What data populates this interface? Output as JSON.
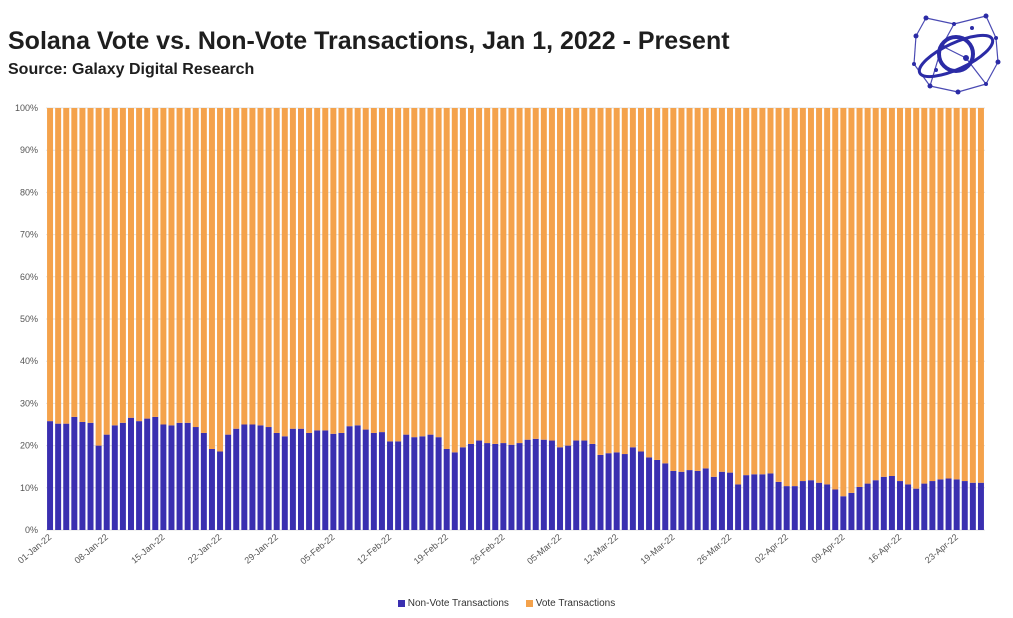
{
  "header": {
    "title": "Solana Vote vs. Non-Vote Transactions, Jan 1, 2022 - Present",
    "subtitle": "Source: Galaxy Digital Research"
  },
  "logo": {
    "icon": "galaxy-network-logo-icon",
    "color": "#2b2ba6"
  },
  "colors": {
    "non_vote": "#3a2fb0",
    "vote": "#f4a24b",
    "grid": "#e2e2e2",
    "axis_text": "#555555"
  },
  "chart_data": {
    "type": "bar",
    "stacked": true,
    "percent_stacked": true,
    "title": "Solana Vote vs. Non-Vote Transactions, Jan 1, 2022 - Present",
    "xlabel": "",
    "ylabel": "",
    "ylim": [
      0,
      100
    ],
    "y_ticks": [
      "0%",
      "10%",
      "20%",
      "30%",
      "40%",
      "50%",
      "60%",
      "70%",
      "80%",
      "90%",
      "100%"
    ],
    "x_tick_labels": [
      "01-Jan-22",
      "08-Jan-22",
      "15-Jan-22",
      "22-Jan-22",
      "29-Jan-22",
      "05-Feb-22",
      "12-Feb-22",
      "19-Feb-22",
      "26-Feb-22",
      "05-Mar-22",
      "12-Mar-22",
      "19-Mar-22",
      "26-Mar-22",
      "02-Apr-22",
      "09-Apr-22",
      "16-Apr-22",
      "23-Apr-22"
    ],
    "start_date": "2022-01-01",
    "end_date": "2022-04-26",
    "grid": true,
    "legend_position": "bottom",
    "series": [
      {
        "name": "Non-Vote Transactions",
        "values": [
          25.8,
          25.2,
          25.2,
          26.8,
          25.6,
          25.4,
          20.0,
          22.6,
          24.8,
          25.4,
          26.6,
          25.8,
          26.4,
          26.8,
          25.0,
          24.8,
          25.4,
          25.4,
          24.4,
          23.0,
          19.2,
          18.6,
          22.6,
          24.0,
          25.0,
          25.0,
          24.8,
          24.4,
          23.0,
          22.2,
          24.0,
          24.0,
          23.0,
          23.6,
          23.6,
          22.8,
          23.0,
          24.6,
          24.8,
          23.8,
          23.0,
          23.2,
          21.0,
          21.0,
          22.6,
          22.0,
          22.2,
          22.6,
          22.0,
          19.2,
          18.4,
          19.6,
          20.4,
          21.2,
          20.6,
          20.4,
          20.6,
          20.2,
          20.6,
          21.4,
          21.6,
          21.4,
          21.2,
          19.6,
          20.0,
          21.2,
          21.2,
          20.4,
          17.8,
          18.2,
          18.4,
          18.0,
          19.6,
          18.6,
          17.2,
          16.6,
          15.8,
          14.0,
          13.8,
          14.2,
          14.0,
          14.6,
          12.6,
          13.8,
          13.6,
          10.8,
          13.0,
          13.2,
          13.2,
          13.4,
          11.4,
          10.4,
          10.4,
          11.6,
          11.8,
          11.2,
          10.8,
          9.6,
          8.0,
          8.8,
          10.2,
          11.0,
          11.8,
          12.6,
          12.8,
          11.6,
          10.8,
          9.8,
          11.0,
          11.6,
          12.0,
          12.2,
          12.0,
          11.6,
          11.2,
          11.2
        ]
      },
      {
        "name": "Vote Transactions",
        "values": [
          74.2,
          74.8,
          74.8,
          73.2,
          74.4,
          74.6,
          80.0,
          77.4,
          75.2,
          74.6,
          73.4,
          74.2,
          73.6,
          73.2,
          75.0,
          75.2,
          74.6,
          74.6,
          75.6,
          77.0,
          80.8,
          81.4,
          77.4,
          76.0,
          75.0,
          75.0,
          75.2,
          75.6,
          77.0,
          77.8,
          76.0,
          76.0,
          77.0,
          76.4,
          76.4,
          77.2,
          77.0,
          75.4,
          75.2,
          76.2,
          77.0,
          76.8,
          79.0,
          79.0,
          77.4,
          78.0,
          77.8,
          77.4,
          78.0,
          80.8,
          81.6,
          80.4,
          79.6,
          78.8,
          79.4,
          79.6,
          79.4,
          79.8,
          79.4,
          78.6,
          78.4,
          78.6,
          78.8,
          80.4,
          80.0,
          78.8,
          78.8,
          79.6,
          82.2,
          81.8,
          81.6,
          82.0,
          80.4,
          81.4,
          82.8,
          83.4,
          84.2,
          86.0,
          86.2,
          85.8,
          86.0,
          85.4,
          87.4,
          86.2,
          86.4,
          89.2,
          87.0,
          86.8,
          86.8,
          86.6,
          88.6,
          89.6,
          89.6,
          88.4,
          88.2,
          88.8,
          89.2,
          90.4,
          92.0,
          91.2,
          89.8,
          89.0,
          88.2,
          87.4,
          87.2,
          88.4,
          89.2,
          90.2,
          89.0,
          88.4,
          88.0,
          87.8,
          88.0,
          88.4,
          88.8,
          88.8
        ]
      }
    ]
  }
}
